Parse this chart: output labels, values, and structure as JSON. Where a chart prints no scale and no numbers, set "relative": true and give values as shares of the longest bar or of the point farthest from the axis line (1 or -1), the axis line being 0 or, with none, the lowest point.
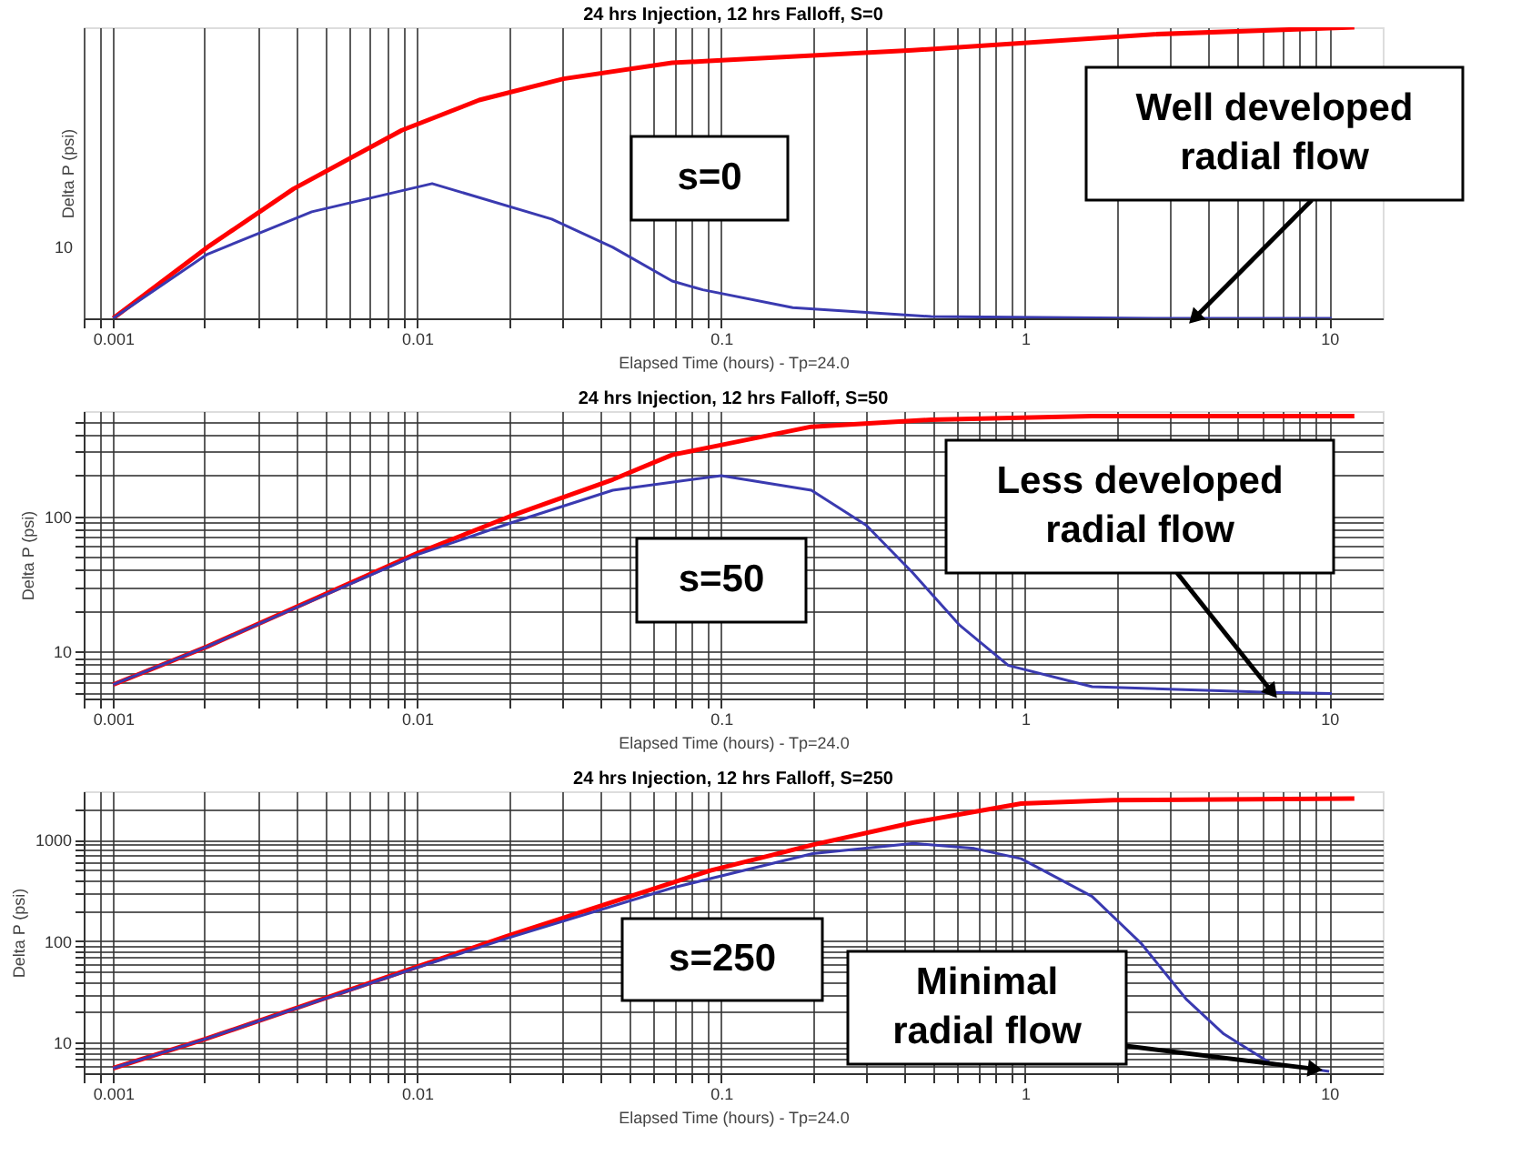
{
  "chart_data": [
    {
      "type": "line",
      "title": "24 hrs Injection, 12 hrs Falloff, S=0",
      "xlabel": "Elapsed Time (hours) - Tp=24.0",
      "ylabel": "Delta P (psi)",
      "log": "x",
      "grid": "x",
      "legend": false,
      "xlim": [
        0.0008,
        15
      ],
      "relative": true,
      "xticks": [
        {
          "value": 0.0008,
          "label": null
        },
        {
          "value": 0.0009,
          "label": null
        },
        {
          "value": 0.001,
          "label": "0.001"
        },
        {
          "value": 0.002,
          "label": null
        },
        {
          "value": 0.003,
          "label": null
        },
        {
          "value": 0.004,
          "label": null
        },
        {
          "value": 0.005,
          "label": null
        },
        {
          "value": 0.006,
          "label": null
        },
        {
          "value": 0.007,
          "label": null
        },
        {
          "value": 0.008,
          "label": null
        },
        {
          "value": 0.009,
          "label": null
        },
        {
          "value": 0.01,
          "label": "0.01"
        },
        {
          "value": 0.02,
          "label": null
        },
        {
          "value": 0.03,
          "label": null
        },
        {
          "value": 0.04,
          "label": null
        },
        {
          "value": 0.05,
          "label": null
        },
        {
          "value": 0.06,
          "label": null
        },
        {
          "value": 0.07,
          "label": null
        },
        {
          "value": 0.08,
          "label": null
        },
        {
          "value": 0.09,
          "label": null
        },
        {
          "value": 0.1,
          "label": "0.1"
        },
        {
          "value": 0.2,
          "label": null
        },
        {
          "value": 0.3,
          "label": null
        },
        {
          "value": 0.4,
          "label": null
        },
        {
          "value": 0.5,
          "label": null
        },
        {
          "value": 0.6,
          "label": null
        },
        {
          "value": 0.7,
          "label": null
        },
        {
          "value": 0.8,
          "label": null
        },
        {
          "value": 0.9,
          "label": null
        },
        {
          "value": 1,
          "label": "1"
        },
        {
          "value": 2,
          "label": null
        },
        {
          "value": 3,
          "label": null
        },
        {
          "value": 4,
          "label": null
        },
        {
          "value": 5,
          "label": null
        },
        {
          "value": 6,
          "label": null
        },
        {
          "value": 7,
          "label": null
        },
        {
          "value": 8,
          "label": null
        },
        {
          "value": 9,
          "label": null
        },
        {
          "value": 10,
          "label": "10"
        }
      ],
      "series": [
        {
          "color": "#ff0000",
          "x": [
            0.001,
            0.00204,
            0.00392,
            0.0089,
            0.016,
            0.0303,
            0.069,
            0.091,
            0.426,
            2.65,
            12.1
          ],
          "values": [
            0,
            0.244,
            0.445,
            0.646,
            0.75,
            0.823,
            0.878,
            0.884,
            0.921,
            0.976,
            1
          ]
        },
        {
          "color": "#3a3ab0",
          "x": [
            0.001,
            0.00204,
            0.0045,
            0.0112,
            0.0277,
            0.044,
            0.069,
            0.087,
            0.172,
            0.49,
            2.65,
            10.2
          ],
          "values": [
            0,
            0.22,
            0.366,
            0.463,
            0.341,
            0.244,
            0.128,
            0.098,
            0.037,
            0.006,
            0,
            0
          ]
        }
      ],
      "annotations": [
        "s=0",
        "10",
        {
          "text": "Well developed\nradial flow",
          "x": 3.6,
          "y": 0
        }
      ]
    },
    {
      "type": "line",
      "title": "24 hrs Injection, 12 hrs Falloff, S=50",
      "xlabel": "Elapsed Time (hours) - Tp=24.0",
      "ylabel": "Delta P (psi)",
      "log": "xy",
      "grid": true,
      "legend": false,
      "xlim": [
        0.0008,
        15
      ],
      "ylim": [
        4.5,
        600
      ],
      "xticks": [
        {
          "value": 0.0008,
          "label": null
        },
        {
          "value": 0.0009,
          "label": null
        },
        {
          "value": 0.001,
          "label": "0.001"
        },
        {
          "value": 0.002,
          "label": null
        },
        {
          "value": 0.003,
          "label": null
        },
        {
          "value": 0.004,
          "label": null
        },
        {
          "value": 0.005,
          "label": null
        },
        {
          "value": 0.006,
          "label": null
        },
        {
          "value": 0.007,
          "label": null
        },
        {
          "value": 0.008,
          "label": null
        },
        {
          "value": 0.009,
          "label": null
        },
        {
          "value": 0.01,
          "label": "0.01"
        },
        {
          "value": 0.02,
          "label": null
        },
        {
          "value": 0.03,
          "label": null
        },
        {
          "value": 0.04,
          "label": null
        },
        {
          "value": 0.05,
          "label": null
        },
        {
          "value": 0.06,
          "label": null
        },
        {
          "value": 0.07,
          "label": null
        },
        {
          "value": 0.08,
          "label": null
        },
        {
          "value": 0.09,
          "label": null
        },
        {
          "value": 0.1,
          "label": "0.1"
        },
        {
          "value": 0.2,
          "label": null
        },
        {
          "value": 0.3,
          "label": null
        },
        {
          "value": 0.4,
          "label": null
        },
        {
          "value": 0.5,
          "label": null
        },
        {
          "value": 0.6,
          "label": null
        },
        {
          "value": 0.7,
          "label": null
        },
        {
          "value": 0.8,
          "label": null
        },
        {
          "value": 0.9,
          "label": null
        },
        {
          "value": 1,
          "label": "1"
        },
        {
          "value": 2,
          "label": null
        },
        {
          "value": 3,
          "label": null
        },
        {
          "value": 4,
          "label": null
        },
        {
          "value": 5,
          "label": null
        },
        {
          "value": 6,
          "label": null
        },
        {
          "value": 7,
          "label": null
        },
        {
          "value": 8,
          "label": null
        },
        {
          "value": 9,
          "label": null
        },
        {
          "value": 10,
          "label": "10"
        }
      ],
      "yticks": [
        {
          "value": 5,
          "label": null
        },
        {
          "value": 6,
          "label": null
        },
        {
          "value": 7,
          "label": null
        },
        {
          "value": 8,
          "label": null
        },
        {
          "value": 9,
          "label": null
        },
        {
          "value": 10,
          "label": "10"
        },
        {
          "value": 20,
          "label": null
        },
        {
          "value": 30,
          "label": null
        },
        {
          "value": 40,
          "label": null
        },
        {
          "value": 50,
          "label": null
        },
        {
          "value": 60,
          "label": null
        },
        {
          "value": 70,
          "label": null
        },
        {
          "value": 80,
          "label": null
        },
        {
          "value": 90,
          "label": null
        },
        {
          "value": 100,
          "label": "100"
        },
        {
          "value": 200,
          "label": null
        },
        {
          "value": 300,
          "label": null
        },
        {
          "value": 400,
          "label": null
        },
        {
          "value": 500,
          "label": null
        }
      ],
      "series": [
        {
          "color": "#ff0000",
          "x": [
            0.001,
            0.00204,
            0.01,
            0.0202,
            0.044,
            0.069,
            0.09,
            0.198,
            0.49,
            1.66,
            12.1
          ],
          "values": [
            5.7,
            10.9,
            53.4,
            100,
            187,
            285,
            321,
            460,
            518,
            550,
            550
          ]
        },
        {
          "color": "#3a3ab0",
          "x": [
            0.001,
            0.00204,
            0.01,
            0.0202,
            0.044,
            0.1,
            0.198,
            0.3,
            0.426,
            0.61,
            0.88,
            1.66,
            6.4,
            10.2
          ],
          "values": [
            5.7,
            10.9,
            52,
            89,
            156,
            200,
            156,
            86,
            38.4,
            15.6,
            7.9,
            5.5,
            5.0,
            4.9
          ]
        }
      ],
      "annotations": [
        "s=50",
        {
          "text": "Less developed\nradial flow",
          "x": 6.5,
          "y": 5.0
        }
      ]
    },
    {
      "type": "line",
      "title": "24 hrs Injection, 12 hrs Falloff, S=250",
      "xlabel": "Elapsed Time (hours) - Tp=24.0",
      "ylabel": "Delta P (psi)",
      "log": "xy",
      "grid": true,
      "legend": false,
      "xlim": [
        0.0008,
        15
      ],
      "ylim": [
        5,
        3000
      ],
      "xticks": [
        {
          "value": 0.0008,
          "label": null
        },
        {
          "value": 0.0009,
          "label": null
        },
        {
          "value": 0.001,
          "label": "0.001"
        },
        {
          "value": 0.002,
          "label": null
        },
        {
          "value": 0.003,
          "label": null
        },
        {
          "value": 0.004,
          "label": null
        },
        {
          "value": 0.005,
          "label": null
        },
        {
          "value": 0.006,
          "label": null
        },
        {
          "value": 0.007,
          "label": null
        },
        {
          "value": 0.008,
          "label": null
        },
        {
          "value": 0.009,
          "label": null
        },
        {
          "value": 0.01,
          "label": "0.01"
        },
        {
          "value": 0.02,
          "label": null
        },
        {
          "value": 0.03,
          "label": null
        },
        {
          "value": 0.04,
          "label": null
        },
        {
          "value": 0.05,
          "label": null
        },
        {
          "value": 0.06,
          "label": null
        },
        {
          "value": 0.07,
          "label": null
        },
        {
          "value": 0.08,
          "label": null
        },
        {
          "value": 0.09,
          "label": null
        },
        {
          "value": 0.1,
          "label": "0.1"
        },
        {
          "value": 0.2,
          "label": null
        },
        {
          "value": 0.3,
          "label": null
        },
        {
          "value": 0.4,
          "label": null
        },
        {
          "value": 0.5,
          "label": null
        },
        {
          "value": 0.6,
          "label": null
        },
        {
          "value": 0.7,
          "label": null
        },
        {
          "value": 0.8,
          "label": null
        },
        {
          "value": 0.9,
          "label": null
        },
        {
          "value": 1,
          "label": "1"
        },
        {
          "value": 2,
          "label": null
        },
        {
          "value": 3,
          "label": null
        },
        {
          "value": 4,
          "label": null
        },
        {
          "value": 5,
          "label": null
        },
        {
          "value": 6,
          "label": null
        },
        {
          "value": 7,
          "label": null
        },
        {
          "value": 8,
          "label": null
        },
        {
          "value": 9,
          "label": null
        },
        {
          "value": 10,
          "label": "10"
        }
      ],
      "yticks": [
        {
          "value": 6,
          "label": null
        },
        {
          "value": 7,
          "label": null
        },
        {
          "value": 8,
          "label": null
        },
        {
          "value": 9,
          "label": null
        },
        {
          "value": 10,
          "label": "10"
        },
        {
          "value": 20,
          "label": null
        },
        {
          "value": 30,
          "label": null
        },
        {
          "value": 40,
          "label": null
        },
        {
          "value": 50,
          "label": null
        },
        {
          "value": 60,
          "label": null
        },
        {
          "value": 70,
          "label": null
        },
        {
          "value": 80,
          "label": null
        },
        {
          "value": 90,
          "label": null
        },
        {
          "value": 100,
          "label": "100"
        },
        {
          "value": 200,
          "label": null
        },
        {
          "value": 300,
          "label": null
        },
        {
          "value": 400,
          "label": null
        },
        {
          "value": 500,
          "label": null
        },
        {
          "value": 600,
          "label": null
        },
        {
          "value": 700,
          "label": null
        },
        {
          "value": 800,
          "label": null
        },
        {
          "value": 900,
          "label": null
        },
        {
          "value": 1000,
          "label": "1000"
        },
        {
          "value": 2000,
          "label": null
        }
      ],
      "series": [
        {
          "color": "#ff0000",
          "x": [
            0.001,
            0.002,
            0.01,
            0.0197,
            0.069,
            0.0916,
            0.2,
            0.43,
            0.97,
            1.95,
            12.1
          ],
          "values": [
            5.6,
            10.8,
            56,
            112,
            377,
            495,
            890,
            1480,
            2270,
            2450,
            2540
          ]
        },
        {
          "color": "#3a3ab0",
          "x": [
            0.001,
            0.002,
            0.01,
            0.02,
            0.069,
            0.2,
            0.43,
            0.68,
            0.97,
            1.66,
            2.4,
            3.4,
            4.5,
            6.4,
            10
          ],
          "values": [
            5.6,
            10.8,
            55,
            108,
            335,
            730,
            920,
            820,
            650,
            276,
            96,
            26.5,
            12.2,
            6.3,
            5.2
          ]
        }
      ],
      "annotations": [
        "s=250",
        {
          "text": "Minimal\nradial flow",
          "x": 9,
          "y": 5.5
        }
      ]
    }
  ]
}
